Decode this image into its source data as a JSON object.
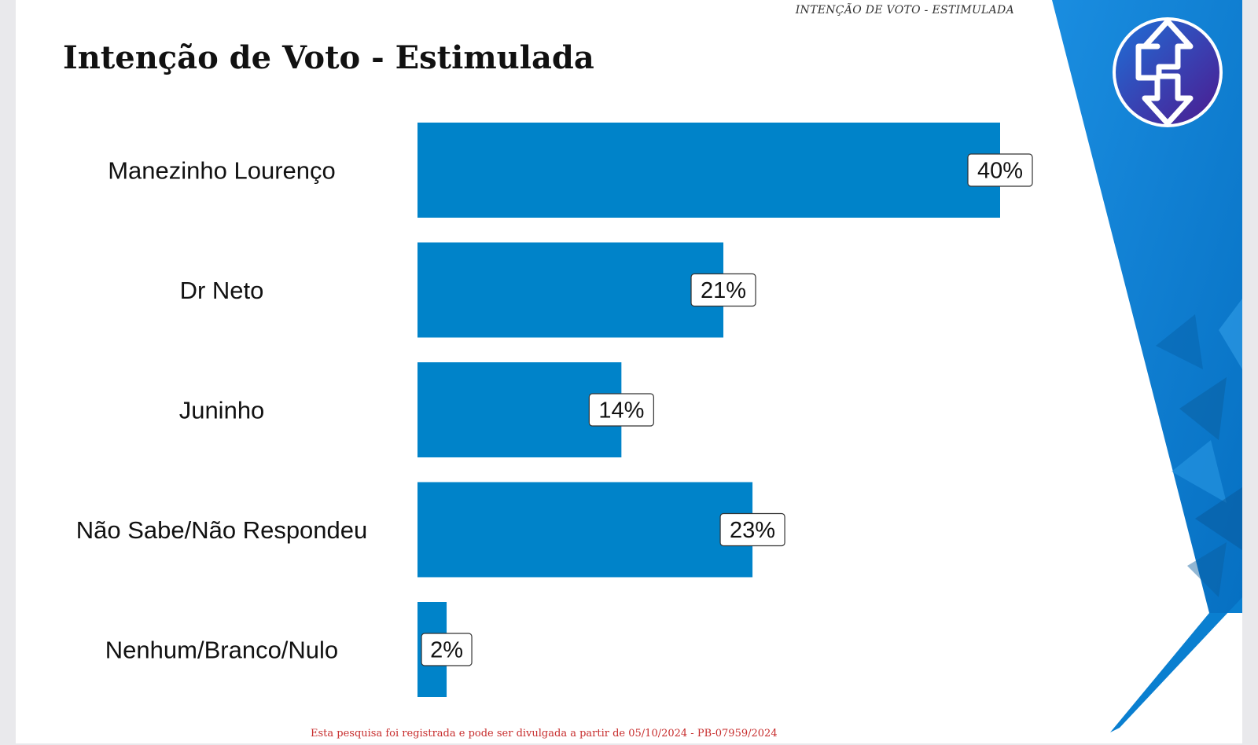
{
  "header": {
    "running_title": "INTENÇÃO DE VOTO - ESTIMULADA",
    "title": "Intenção de Voto - Estimulada"
  },
  "footer": {
    "note": "Esta pesquisa foi registrada e pode ser divulgada a partir de 05/10/2024 - PB-07959/2024"
  },
  "colors": {
    "bar": "#0083c9",
    "accent_blue": "#0a7fd0",
    "logo_purple": "#4b1b8f",
    "footer_red": "#c72c2c"
  },
  "chart_data": {
    "type": "bar",
    "orientation": "horizontal",
    "title": "Intenção de Voto - Estimulada",
    "categories": [
      "Manezinho Lourenço",
      "Dr Neto",
      "Juninho",
      "Não Sabe/Não Respondeu",
      "Nenhum/Branco/Nulo"
    ],
    "values": [
      40,
      21,
      14,
      23,
      2
    ],
    "value_labels": [
      "40%",
      "21%",
      "14%",
      "23%",
      "2%"
    ],
    "unit": "%",
    "xlim": [
      0,
      40
    ],
    "grid": false,
    "legend": "none"
  }
}
